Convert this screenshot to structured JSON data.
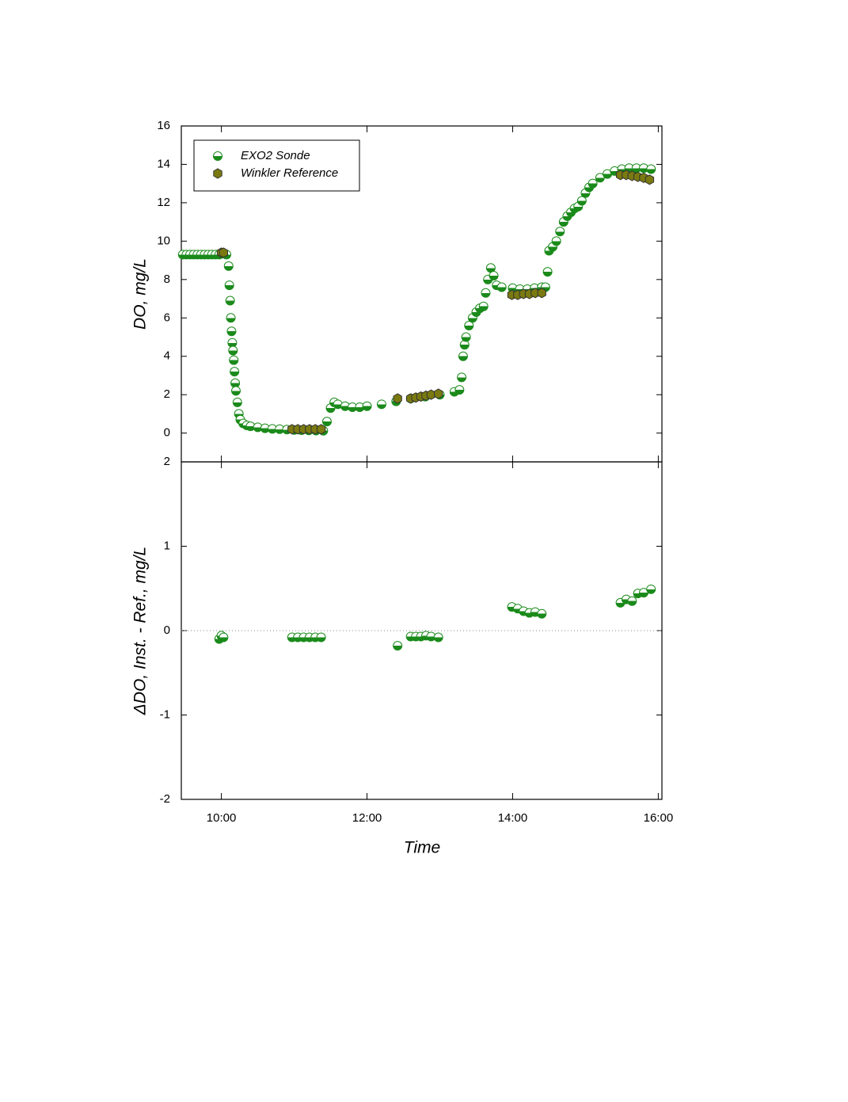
{
  "chart_data": [
    {
      "type": "scatter",
      "y_label": "DO, mg/L",
      "xlim": [
        9.45,
        16.05
      ],
      "ylim": [
        -1.5,
        16
      ],
      "yticks": [
        0,
        2,
        4,
        6,
        8,
        10,
        12,
        14,
        16
      ],
      "legend": "top-left",
      "series": [
        {
          "name": "EXO2 Sonde",
          "color": "#1a8a1a",
          "marker": "half-circle",
          "x": [
            9.47,
            9.52,
            9.57,
            9.62,
            9.67,
            9.72,
            9.77,
            9.82,
            9.87,
            9.92,
            9.97,
            10.02,
            10.07,
            10.1,
            10.11,
            10.12,
            10.13,
            10.14,
            10.15,
            10.16,
            10.17,
            10.18,
            10.19,
            10.2,
            10.22,
            10.24,
            10.26,
            10.3,
            10.35,
            10.4,
            10.5,
            10.6,
            10.7,
            10.8,
            10.9,
            11.0,
            11.1,
            11.2,
            11.3,
            11.4,
            11.45,
            11.5,
            11.55,
            11.6,
            11.7,
            11.8,
            11.9,
            12.0,
            12.2,
            12.4,
            12.6,
            12.8,
            13.0,
            13.2,
            13.27,
            13.3,
            13.32,
            13.34,
            13.36,
            13.4,
            13.45,
            13.5,
            13.55,
            13.6,
            13.63,
            13.66,
            13.7,
            13.74,
            13.78,
            13.85,
            14.0,
            14.1,
            14.2,
            14.3,
            14.4,
            14.45,
            14.48,
            14.5,
            14.55,
            14.6,
            14.65,
            14.7,
            14.75,
            14.8,
            14.85,
            14.9,
            14.95,
            15.0,
            15.05,
            15.1,
            15.2,
            15.3,
            15.4,
            15.5,
            15.6,
            15.7,
            15.8,
            15.9
          ],
          "values": [
            9.3,
            9.3,
            9.3,
            9.3,
            9.3,
            9.3,
            9.3,
            9.3,
            9.3,
            9.3,
            9.3,
            9.35,
            9.3,
            8.7,
            7.7,
            6.9,
            6.0,
            5.3,
            4.7,
            4.3,
            3.8,
            3.2,
            2.6,
            2.2,
            1.6,
            1.0,
            0.7,
            0.5,
            0.4,
            0.35,
            0.3,
            0.25,
            0.22,
            0.2,
            0.18,
            0.16,
            0.15,
            0.14,
            0.13,
            0.12,
            0.6,
            1.3,
            1.6,
            1.5,
            1.4,
            1.35,
            1.35,
            1.4,
            1.5,
            1.65,
            1.8,
            1.9,
            2.0,
            2.15,
            2.25,
            2.9,
            4.0,
            4.6,
            5.0,
            5.6,
            6.0,
            6.3,
            6.5,
            6.6,
            7.3,
            8.0,
            8.6,
            8.2,
            7.7,
            7.6,
            7.55,
            7.5,
            7.5,
            7.55,
            7.6,
            7.6,
            8.4,
            9.5,
            9.7,
            10.0,
            10.5,
            11.0,
            11.3,
            11.5,
            11.7,
            11.8,
            12.1,
            12.5,
            12.8,
            13.0,
            13.3,
            13.5,
            13.65,
            13.75,
            13.8,
            13.8,
            13.8,
            13.75
          ]
        },
        {
          "name": "Winkler Reference",
          "color": "#7a7a10",
          "marker": "hexagon",
          "x": [
            10.0,
            10.03,
            10.97,
            11.05,
            11.13,
            11.21,
            11.29,
            11.37,
            12.42,
            12.6,
            12.67,
            12.74,
            12.81,
            12.88,
            12.98,
            13.99,
            14.07,
            14.15,
            14.23,
            14.31,
            14.4,
            15.48,
            15.56,
            15.64,
            15.72,
            15.8,
            15.88
          ],
          "values": [
            9.4,
            9.4,
            0.2,
            0.2,
            0.2,
            0.2,
            0.2,
            0.2,
            1.8,
            1.8,
            1.85,
            1.9,
            1.95,
            2.0,
            2.05,
            7.2,
            7.2,
            7.25,
            7.25,
            7.3,
            7.3,
            13.45,
            13.45,
            13.4,
            13.35,
            13.3,
            13.2
          ]
        }
      ]
    },
    {
      "type": "scatter",
      "x_label": "Time",
      "y_label": "ΔDO, Inst. - Ref., mg/L",
      "xlim": [
        9.45,
        16.05
      ],
      "ylim": [
        -2,
        2
      ],
      "yticks": [
        -2,
        -1,
        0,
        1,
        2
      ],
      "zero_line": true,
      "xticks": [
        {
          "value": 10,
          "label": "10:00"
        },
        {
          "value": 12,
          "label": "12:00"
        },
        {
          "value": 14,
          "label": "14:00"
        },
        {
          "value": 16,
          "label": "16:00"
        }
      ],
      "series": [
        {
          "color": "#1a8a1a",
          "marker": "half-circle",
          "x": [
            9.97,
            10.0,
            10.03,
            10.97,
            11.05,
            11.13,
            11.21,
            11.29,
            11.37,
            12.42,
            12.6,
            12.67,
            12.74,
            12.81,
            12.88,
            12.98,
            13.99,
            14.07,
            14.15,
            14.23,
            14.31,
            14.4,
            15.48,
            15.56,
            15.64,
            15.72,
            15.8,
            15.9
          ],
          "values": [
            -0.1,
            -0.06,
            -0.08,
            -0.08,
            -0.08,
            -0.08,
            -0.08,
            -0.08,
            -0.08,
            -0.18,
            -0.07,
            -0.07,
            -0.07,
            -0.06,
            -0.07,
            -0.08,
            0.28,
            0.26,
            0.23,
            0.21,
            0.22,
            0.2,
            0.33,
            0.37,
            0.35,
            0.44,
            0.45,
            0.49
          ]
        }
      ]
    }
  ]
}
